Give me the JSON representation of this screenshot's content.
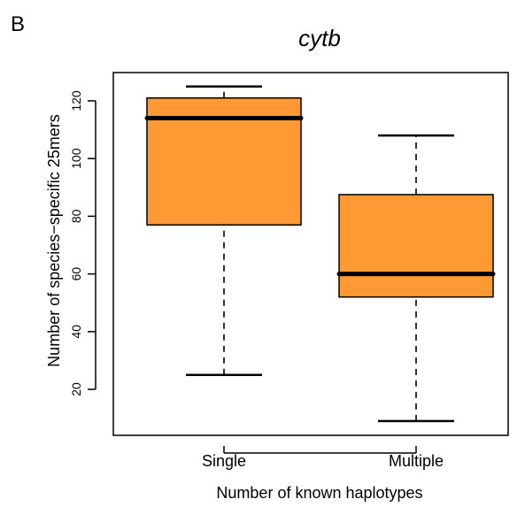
{
  "panel_label": "B",
  "chart_data": {
    "type": "boxplot",
    "title": "cytb",
    "xlabel": "Number of known haplotypes",
    "ylabel": "Number of species−specific 25mers",
    "categories": [
      "Single",
      "Multiple"
    ],
    "boxes": [
      {
        "category": "Single",
        "whisker_low": 25,
        "q1": 77,
        "median": 114,
        "q3": 121,
        "whisker_high": 125
      },
      {
        "category": "Multiple",
        "whisker_low": 9,
        "q1": 52,
        "median": 60,
        "q3": 87.5,
        "whisker_high": 108
      }
    ],
    "yticks": [
      20,
      40,
      60,
      80,
      100,
      120
    ],
    "ylim": [
      5,
      130
    ],
    "box_color": "#FF9933",
    "line_color": "#000000",
    "grid": false,
    "legend": false
  }
}
